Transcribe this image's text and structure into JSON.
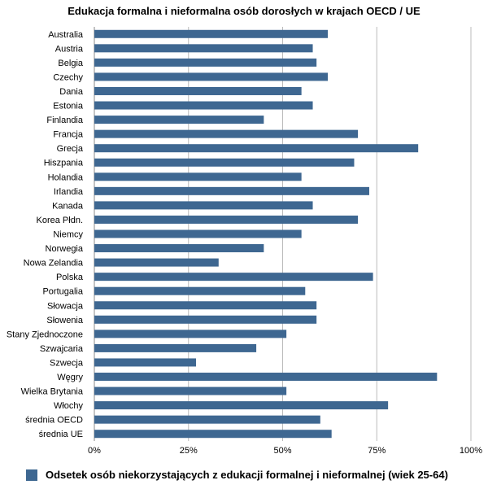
{
  "chart_data": {
    "type": "bar",
    "orientation": "horizontal",
    "title": "Edukacja formalna i nieformalna osób dorosłych w krajach OECD / UE",
    "categories": [
      "Australia",
      "Austria",
      "Belgia",
      "Czechy",
      "Dania",
      "Estonia",
      "Finlandia",
      "Francja",
      "Grecja",
      "Hiszpania",
      "Holandia",
      "Irlandia",
      "Kanada",
      "Korea Płdn.",
      "Niemcy",
      "Norwegia",
      "Nowa Zelandia",
      "Polska",
      "Portugalia",
      "Słowacja",
      "Słowenia",
      "Stany Zjednoczone",
      "Szwajcaria",
      "Szwecja",
      "Węgry",
      "Wielka Brytania",
      "Włochy",
      "średnia OECD",
      "średnia UE"
    ],
    "series": [
      {
        "name": "Odsetek osób niekorzystających z edukacji formalnej i nieformalnej (wiek 25-64)",
        "values": [
          62,
          58,
          59,
          62,
          55,
          58,
          45,
          70,
          86,
          69,
          55,
          73,
          58,
          70,
          55,
          45,
          33,
          74,
          56,
          59,
          59,
          51,
          43,
          27,
          91,
          51,
          78,
          60,
          63
        ]
      }
    ],
    "x_ticks": [
      "0%",
      "25%",
      "50%",
      "75%",
      "100%"
    ],
    "xlim": [
      0,
      100
    ],
    "grid": true,
    "legend_position": "bottom-left",
    "colors": {
      "bar": "#3e6791",
      "grid": "#bbbbbb",
      "axis": "#888888"
    }
  }
}
